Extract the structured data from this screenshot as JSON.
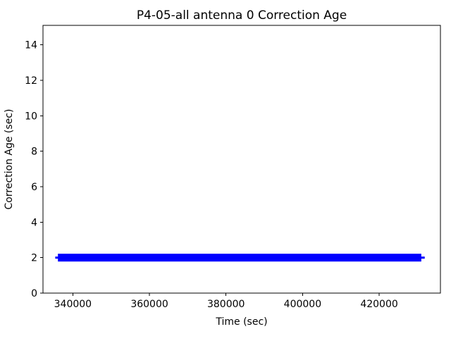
{
  "chart_data": {
    "type": "scatter",
    "title": "P4-05-all antenna 0 Correction Age",
    "xlabel": "Time (sec)",
    "ylabel": "Correction Age (sec)",
    "xlim": [
      332200,
      436000
    ],
    "ylim": [
      0,
      15.1
    ],
    "x_ticks": [
      340000,
      360000,
      380000,
      400000,
      420000
    ],
    "y_ticks": [
      0,
      2,
      4,
      6,
      8,
      10,
      12,
      14
    ],
    "grid": false,
    "legend_position": "none",
    "colors": {
      "series": "#0000ff",
      "text": "#000000",
      "spine": "#000000",
      "background": "#ffffff"
    },
    "series": [
      {
        "name": "antenna 0 correction age",
        "color": "#0000ff",
        "marker": "+",
        "y_constant": 2,
        "x_start": 335400,
        "x_end": 431900,
        "segments": [
          {
            "x_start": 335400,
            "x_end": 431900,
            "y_min": 1.94,
            "y_max": 2.06
          },
          {
            "x_start": 336100,
            "x_end": 431000,
            "y_min": 1.78,
            "y_max": 2.22
          }
        ]
      }
    ]
  }
}
